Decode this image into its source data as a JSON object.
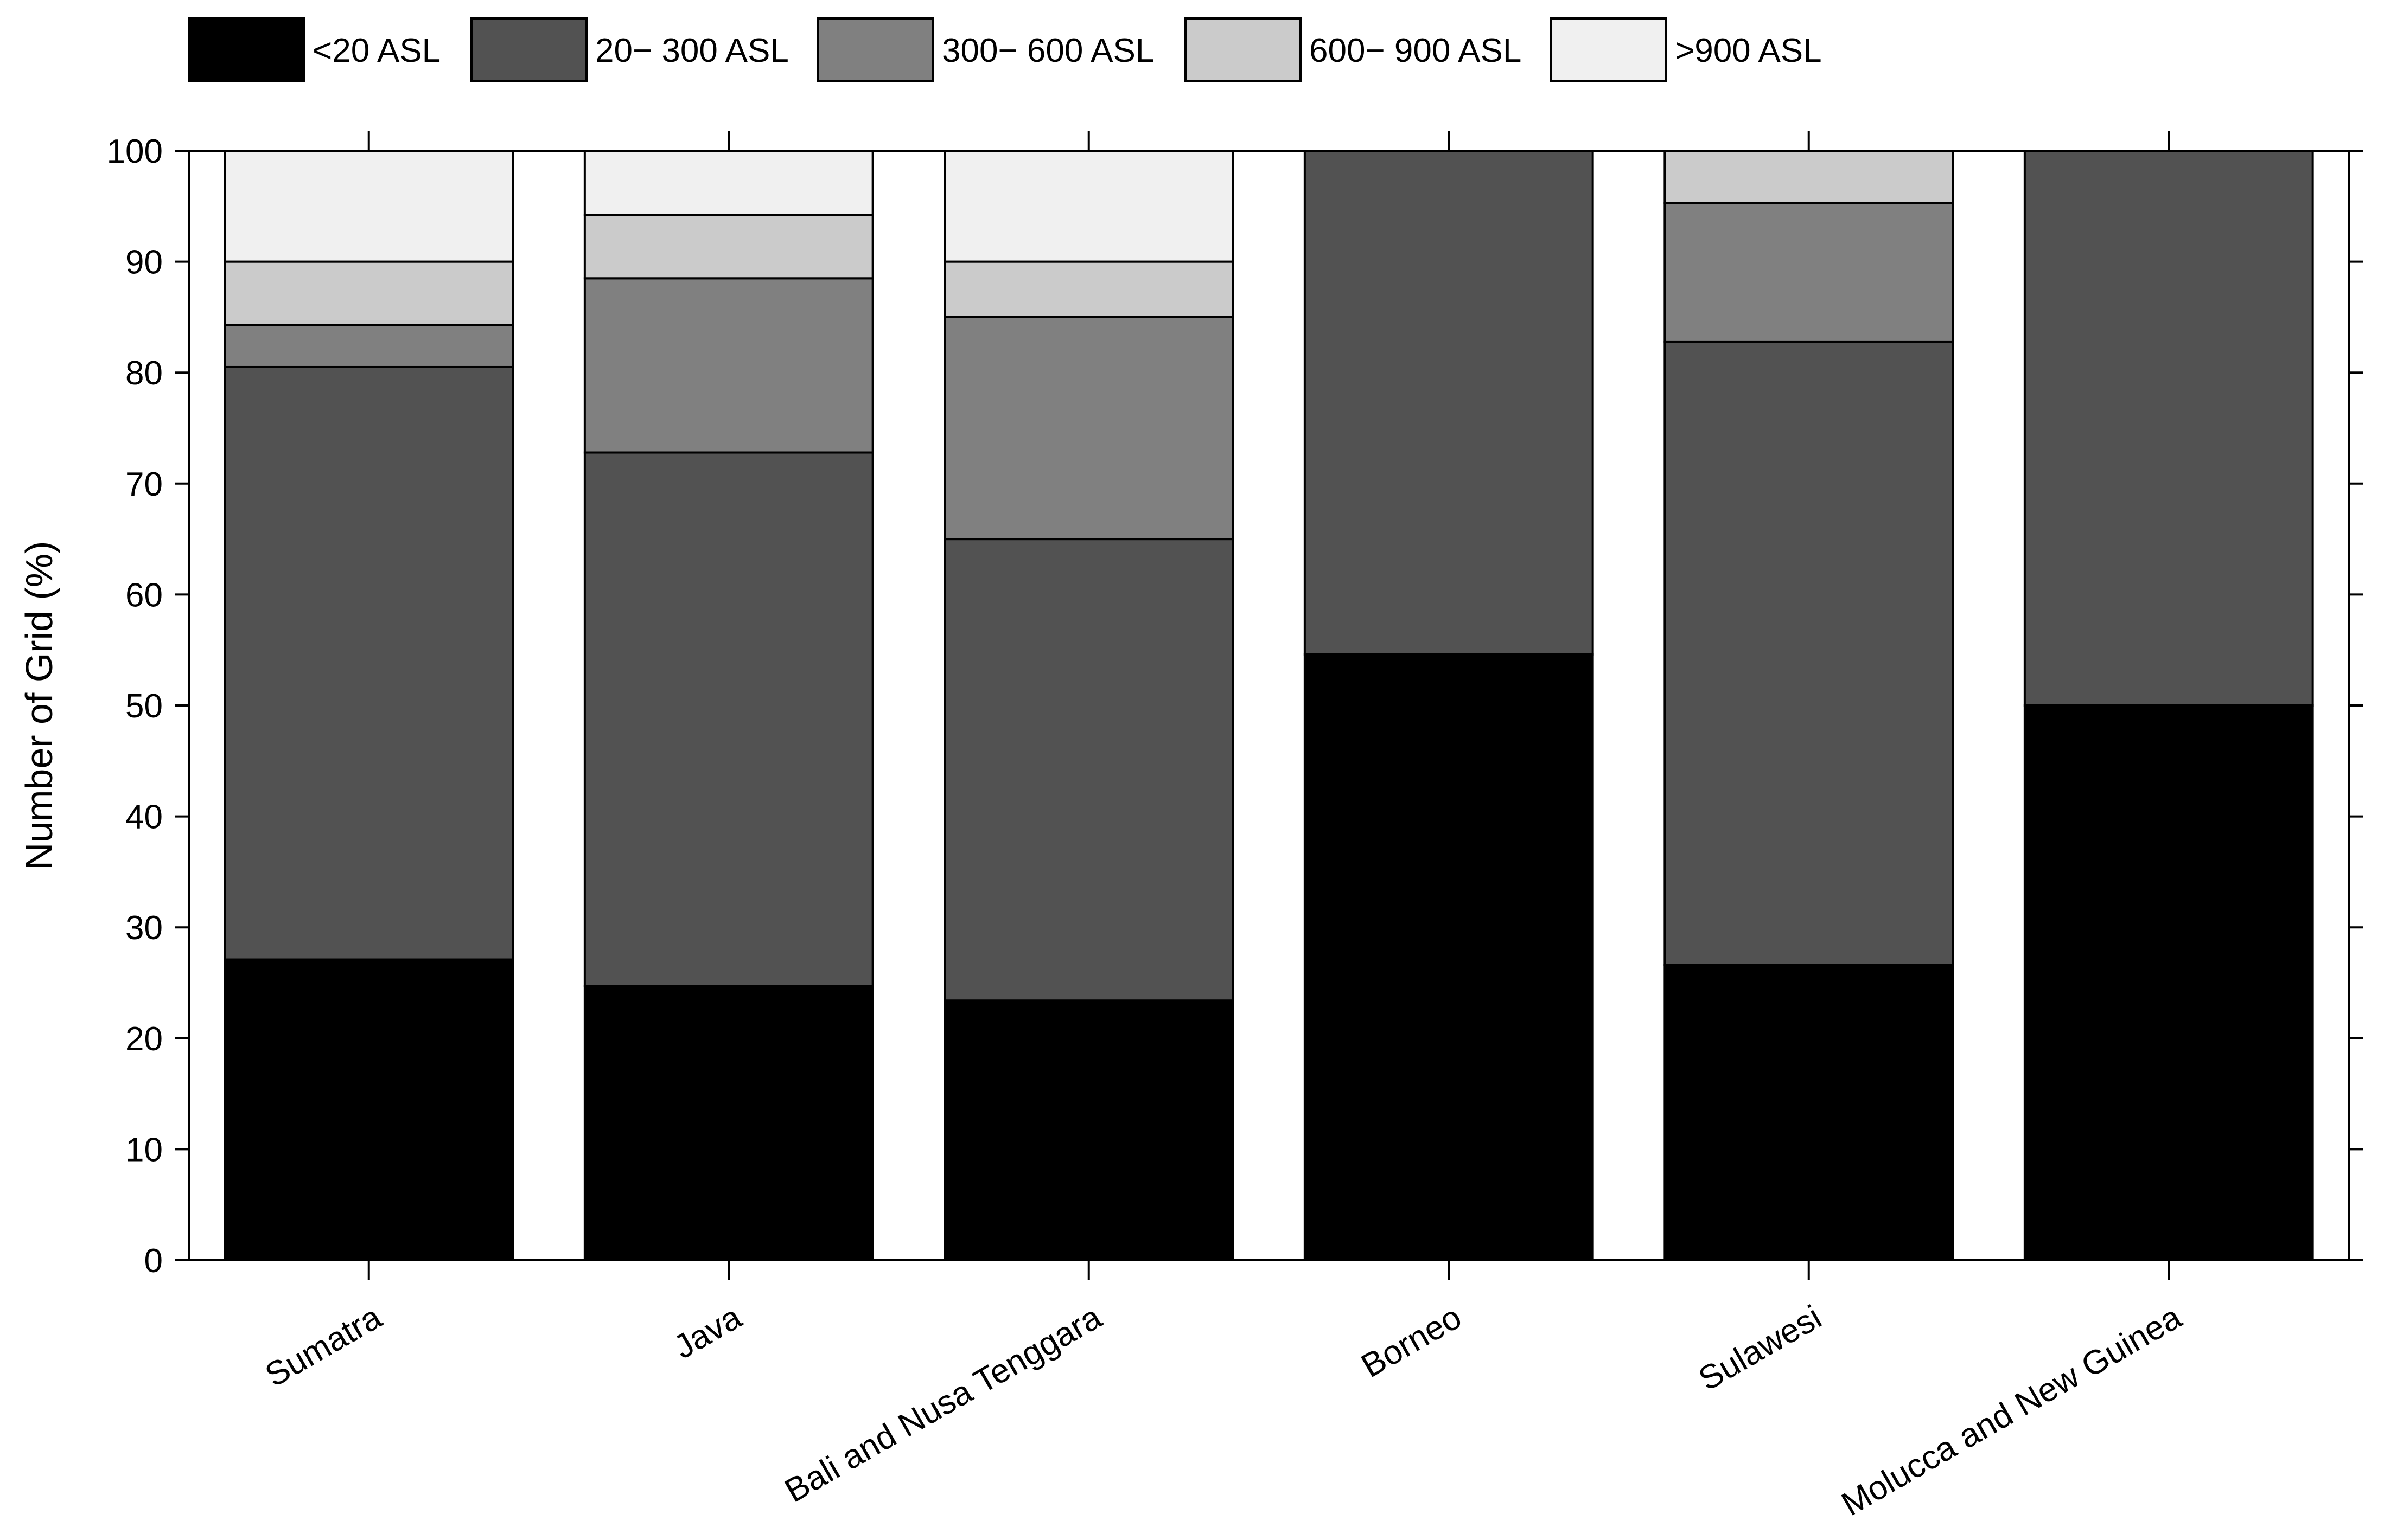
{
  "chart_data": {
    "type": "bar",
    "stacked": true,
    "title": "",
    "xlabel": "",
    "ylabel": "Number of Grid (%)",
    "ylim": [
      0,
      100
    ],
    "yticks": [
      0,
      10,
      20,
      30,
      40,
      50,
      60,
      70,
      80,
      90,
      100
    ],
    "grid": false,
    "legend_position": "top",
    "categories": [
      "Sumatra",
      "Java",
      "Bali and Nusa Tenggara",
      "Borneo",
      "Sulawesi",
      "Molucca and New Guinea"
    ],
    "series": [
      {
        "name": "<20 ASL",
        "color": "#000000",
        "values": [
          27.1,
          24.7,
          23.4,
          54.6,
          26.6,
          50.0
        ]
      },
      {
        "name": "20− 300 ASL",
        "color": "#525252",
        "values": [
          53.4,
          48.1,
          41.6,
          45.4,
          56.2,
          50.0
        ]
      },
      {
        "name": "300− 600 ASL",
        "color": "#808080",
        "values": [
          3.8,
          15.7,
          20.0,
          0,
          12.5,
          0
        ]
      },
      {
        "name": "600− 900 ASL",
        "color": "#cbcbcb",
        "values": [
          5.7,
          5.7,
          5.0,
          0,
          4.7,
          0
        ]
      },
      {
        "name": ">900 ASL",
        "color": "#f0f0f0",
        "values": [
          10.0,
          5.8,
          10.0,
          0,
          0,
          0
        ]
      }
    ]
  }
}
